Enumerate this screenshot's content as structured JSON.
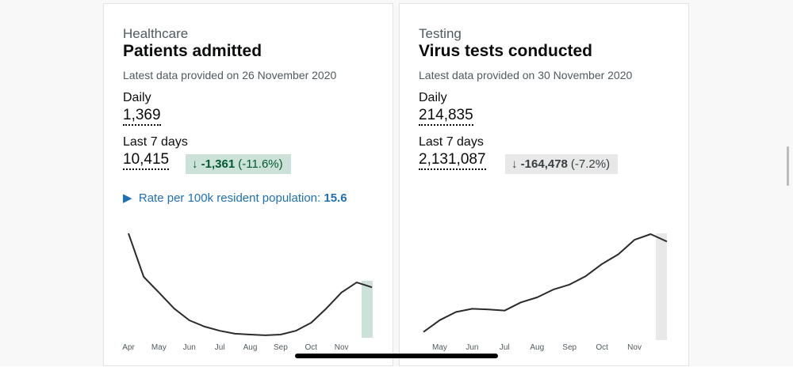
{
  "cards": [
    {
      "category": "Healthcare",
      "title": "Patients admitted",
      "latest": "Latest data provided on 26 November 2020",
      "daily_label": "Daily",
      "daily_value": "1,369",
      "week_label": "Last 7 days",
      "week_value": "10,415",
      "change": "-1,361",
      "change_pct": "(-11.6%)",
      "rate_label": "Rate per 100k resident population:",
      "rate_value": "15.6"
    },
    {
      "category": "Testing",
      "title": "Virus tests conducted",
      "latest": "Latest data provided on 30 November 2020",
      "daily_label": "Daily",
      "daily_value": "214,835",
      "week_label": "Last 7 days",
      "week_value": "2,131,087",
      "change": "-164,478",
      "change_pct": "(-7.2%)"
    }
  ],
  "chart_data": [
    {
      "type": "line",
      "color": "#2b2b2b",
      "categories": [
        "Apr",
        null,
        "May",
        null,
        "Jun",
        null,
        "Jul",
        null,
        "Aug",
        null,
        "Sep",
        null,
        "Oct",
        null,
        "Nov",
        null,
        null
      ],
      "values": [
        3000,
        1750,
        1300,
        840,
        500,
        320,
        200,
        115,
        90,
        70,
        90,
        200,
        430,
        840,
        1300,
        1590,
        1450
      ],
      "ylim": [
        0,
        3200
      ]
    },
    {
      "type": "line",
      "color": "#2b2b2b",
      "categories": [
        null,
        "May",
        null,
        "Jun",
        null,
        "Jul",
        null,
        "Aug",
        null,
        "Sep",
        null,
        "Oct",
        null,
        "Nov",
        null,
        null
      ],
      "values": [
        23000,
        56000,
        79000,
        88000,
        86000,
        83000,
        106000,
        120000,
        142000,
        156000,
        180000,
        214000,
        241000,
        282000,
        298000,
        277000
      ],
      "ylim": [
        0,
        320000
      ]
    }
  ]
}
